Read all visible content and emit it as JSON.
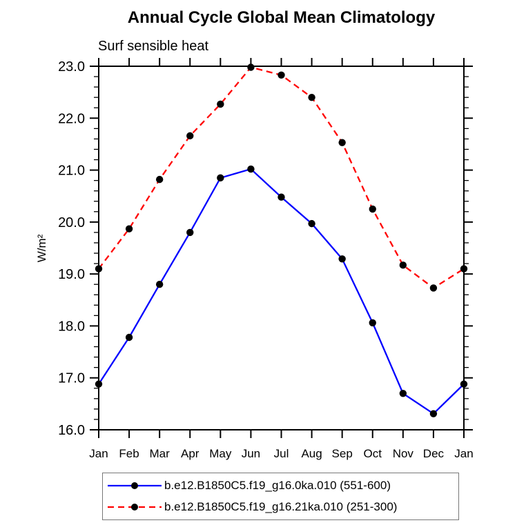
{
  "title": "Annual Cycle Global Mean Climatology",
  "subtitle": "Surf sensible heat",
  "y_axis_label": "W/m²",
  "colors": {
    "series1": "#0000ff",
    "series2": "#ff0000",
    "marker": "#000000",
    "axis": "#000000",
    "legend_border": "#777777"
  },
  "chart_data": {
    "type": "line",
    "title": "Annual Cycle Global Mean Climatology",
    "subtitle": "Surf sensible heat",
    "xlabel": "",
    "ylabel": "W/m²",
    "categories": [
      "Jan",
      "Feb",
      "Mar",
      "Apr",
      "May",
      "Jun",
      "Jul",
      "Aug",
      "Sep",
      "Oct",
      "Nov",
      "Dec",
      "Jan"
    ],
    "series": [
      {
        "name": "b.e12.B1850C5.f19_g16.0ka.010 (551-600)",
        "color": "#0000ff",
        "style": "solid",
        "marker": "filled-circle",
        "values": [
          16.88,
          17.78,
          18.8,
          19.8,
          20.85,
          21.02,
          20.48,
          19.97,
          19.29,
          18.06,
          16.7,
          16.31,
          16.88
        ]
      },
      {
        "name": "b.e12.B1850C5.f19_g16.21ka.010 (251-300)",
        "color": "#ff0000",
        "style": "dashed",
        "marker": "filled-circle",
        "values": [
          19.1,
          19.87,
          20.82,
          21.66,
          22.27,
          22.98,
          22.83,
          22.4,
          21.53,
          20.25,
          19.17,
          18.73,
          19.1
        ]
      }
    ],
    "ylim": [
      16.0,
      23.0
    ],
    "ytick_step": 1.0,
    "yminor_step": 0.2,
    "ytick_labels": [
      "16.0",
      "17.0",
      "18.0",
      "19.0",
      "20.0",
      "21.0",
      "22.0",
      "23.0"
    ],
    "grid": false,
    "legend_position": "bottom",
    "tick_style": "outward-all-sides"
  }
}
